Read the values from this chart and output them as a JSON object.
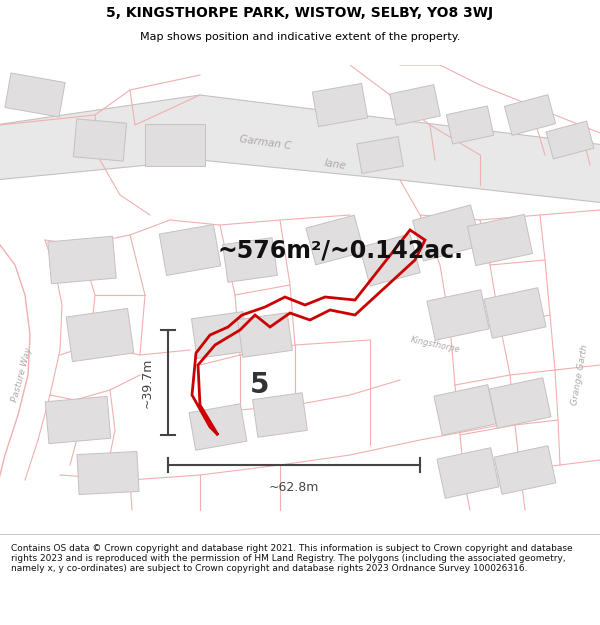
{
  "title": "5, KINGSTHORPE PARK, WISTOW, SELBY, YO8 3WJ",
  "subtitle": "Map shows position and indicative extent of the property.",
  "footer": "Contains OS data © Crown copyright and database right 2021. This information is subject to Crown copyright and database rights 2023 and is reproduced with the permission of HM Land Registry. The polygons (including the associated geometry, namely x, y co-ordinates) are subject to Crown copyright and database rights 2023 Ordnance Survey 100026316.",
  "area_text": "~576m²/~0.142ac.",
  "width_text": "~62.8m",
  "height_text": "~39.7m",
  "plot_number": "5",
  "bg_color": "#ffffff",
  "map_bg": "#ffffff",
  "road_fill": "#e8e8e8",
  "road_outline": "#f0c0c0",
  "building_fill": "#e0dede",
  "building_outline": "#c8c0c0",
  "plot_outline": "#f0b0b0",
  "highlight_color": "#cc0000",
  "dim_color": "#444444",
  "street_color": "#b0a8a8",
  "garman_label": "Garman C",
  "garman_label2": "lane",
  "pasture_label": "Pasture Way",
  "grange_label": "Grange Garth",
  "plot_number_color": "#333333",
  "title_fontsize": 10,
  "subtitle_fontsize": 8,
  "footer_fontsize": 6.5,
  "area_fontsize": 17,
  "dim_fontsize": 9,
  "plot_num_fontsize": 20
}
